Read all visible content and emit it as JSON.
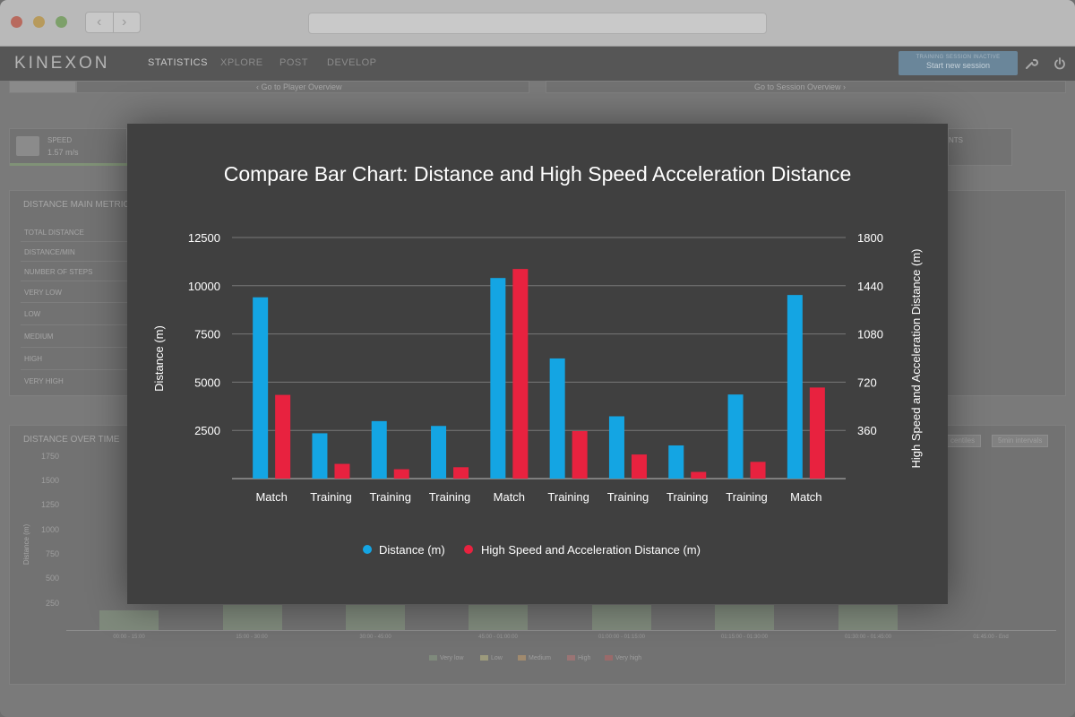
{
  "browser": {
    "back_glyph": "‹",
    "forward_glyph": "›"
  },
  "header": {
    "logo": "KINEXON",
    "nav": [
      "STATISTICS",
      "XPLORE",
      "POST",
      "DEVELOP"
    ],
    "session_status": "TRAINING SESSION INACTIVE",
    "session_button": "Start new session",
    "wrench_icon": "wrench-icon",
    "power_icon": "power-icon"
  },
  "background": {
    "go_player": "‹ Go to Player Overview",
    "go_session": "Go to Session Overview ›",
    "speed_label": "SPEED",
    "speed_value": "1.57 m/s",
    "right_panel_fragment": "NTS",
    "metrics_title": "DISTANCE MAIN METRIC",
    "metric_rows": [
      "TOTAL DISTANCE",
      "DISTANCE/MIN",
      "NUMBER OF STEPS",
      "VERY LOW",
      "LOW",
      "MEDIUM",
      "HIGH",
      "VERY HIGH"
    ],
    "over_time_title": "DISTANCE OVER TIME",
    "over_time_ylabel": "Distance (m)",
    "over_time_yticks": [
      "1750",
      "1500",
      "1250",
      "1000",
      "750",
      "500",
      "250"
    ],
    "over_time_xlabels": [
      "00:00 - 15:00",
      "15:00 - 30:00",
      "30:00 - 45:00",
      "45:00 - 01:00:00",
      "01:00:00 - 01:15:00",
      "01:15:00 - 01:30:00",
      "01:30:00 - 01:45:00",
      "01:45:00 - End"
    ],
    "over_time_legend": [
      "Very low",
      "Low",
      "Medium",
      "High",
      "Very high"
    ],
    "over_time_legend_colors": [
      "#7f8a7c",
      "#9c9a7c",
      "#a08a6e",
      "#9a7474",
      "#9a6a6a"
    ],
    "chip_percentiles": "centiles",
    "chip_intervals": "5min intervals"
  },
  "chart_data": {
    "type": "bar",
    "title": "Compare Bar Chart: Distance and High Speed Acceleration Distance",
    "ylabel": "Distance (m)",
    "y2label": "High Speed and Acceleration Distance (m)",
    "ylim": [
      0,
      12500
    ],
    "y2lim": [
      0,
      1800
    ],
    "yticks": [
      2500,
      5000,
      7500,
      10000,
      12500
    ],
    "y2ticks": [
      360,
      720,
      1080,
      1440,
      1800
    ],
    "categories": [
      "Match",
      "Training",
      "Training",
      "Training",
      "Match",
      "Training",
      "Training",
      "Training",
      "Training",
      "Match"
    ],
    "series": [
      {
        "name": "Distance (m)",
        "axis": "left",
        "color": "#14a5e3",
        "values": [
          9400,
          2350,
          2980,
          2730,
          10400,
          6230,
          3230,
          1720,
          4360,
          9520
        ]
      },
      {
        "name": "High Speed and Acceleration Distance (m)",
        "axis": "right",
        "color": "#e8223f",
        "values": [
          625,
          110,
          70,
          85,
          1565,
          355,
          180,
          50,
          125,
          680
        ]
      }
    ],
    "grid": true,
    "legend_position": "bottom"
  }
}
